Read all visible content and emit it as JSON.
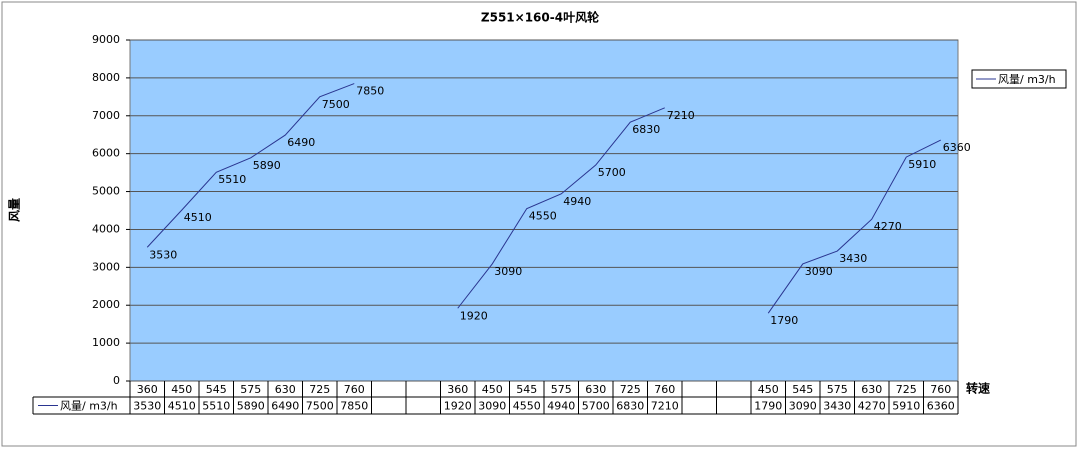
{
  "chart_data": {
    "type": "line",
    "title": "Z551×160-4叶风轮",
    "x_label": "转速",
    "y_label": "风量",
    "categories": [
      360,
      450,
      545,
      575,
      630,
      725,
      760,
      null,
      null,
      360,
      450,
      545,
      575,
      630,
      725,
      760,
      null,
      null,
      450,
      545,
      575,
      630,
      725,
      760
    ],
    "series": [
      {
        "name": "风量/ m3/h",
        "color": "#2a3590",
        "values": [
          3530,
          4510,
          5510,
          5890,
          6490,
          7500,
          7850,
          null,
          null,
          1920,
          3090,
          4550,
          4940,
          5700,
          6830,
          7210,
          null,
          null,
          1790,
          3090,
          3430,
          4270,
          5910,
          6360
        ]
      }
    ],
    "ylim": [
      0,
      9000
    ],
    "yticks": [
      0,
      1000,
      2000,
      3000,
      4000,
      5000,
      6000,
      7000,
      8000,
      9000
    ],
    "grid": true,
    "legend": "right",
    "plot_color": "#99ccff"
  }
}
